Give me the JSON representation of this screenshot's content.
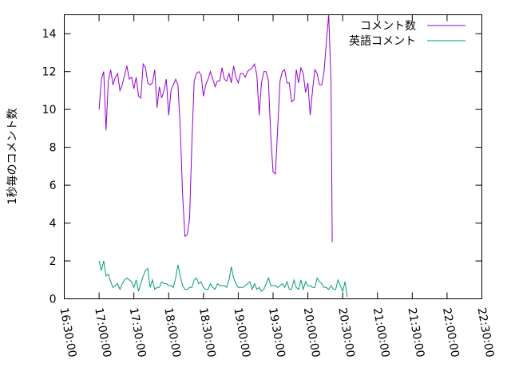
{
  "chart_data": {
    "type": "line",
    "title": "",
    "xlabel": "",
    "ylabel": "1秒毎のコメント数",
    "xlim": [
      "16:30:00",
      "22:30:00"
    ],
    "ylim": [
      0,
      15
    ],
    "x_ticks": [
      "16:30:00",
      "17:00:00",
      "17:30:00",
      "18:00:00",
      "18:30:00",
      "19:00:00",
      "19:30:00",
      "20:00:00",
      "20:30:00",
      "21:00:00",
      "21:30:00",
      "22:00:00",
      "22:30:00"
    ],
    "y_ticks": [
      "0",
      "2",
      "4",
      "6",
      "8",
      "10",
      "12",
      "14"
    ],
    "grid": false,
    "legend_position": "top-right",
    "series": [
      {
        "name": "コメント数",
        "color": "#9400d3",
        "points": [
          [
            "17:00:00",
            10.0
          ],
          [
            "17:02:00",
            11.6
          ],
          [
            "17:04:00",
            12.0
          ],
          [
            "17:06:00",
            8.9
          ],
          [
            "17:08:00",
            11.5
          ],
          [
            "17:10:00",
            12.1
          ],
          [
            "17:12:00",
            11.3
          ],
          [
            "17:14:00",
            11.7
          ],
          [
            "17:16:00",
            11.9
          ],
          [
            "17:18:00",
            11.0
          ],
          [
            "17:20:00",
            11.3
          ],
          [
            "17:22:00",
            11.8
          ],
          [
            "17:24:00",
            12.3
          ],
          [
            "17:26:00",
            11.6
          ],
          [
            "17:28:00",
            11.7
          ],
          [
            "17:30:00",
            11.1
          ],
          [
            "17:32:00",
            11.7
          ],
          [
            "17:34:00",
            10.7
          ],
          [
            "17:36:00",
            10.6
          ],
          [
            "17:38:00",
            12.4
          ],
          [
            "17:40:00",
            12.2
          ],
          [
            "17:42:00",
            11.4
          ],
          [
            "17:44:00",
            11.3
          ],
          [
            "17:46:00",
            11.4
          ],
          [
            "17:48:00",
            12.1
          ],
          [
            "17:50:00",
            10.1
          ],
          [
            "17:52:00",
            11.2
          ],
          [
            "17:54:00",
            10.6
          ],
          [
            "17:56:00",
            11.0
          ],
          [
            "17:58:00",
            11.6
          ],
          [
            "18:00:00",
            9.7
          ],
          [
            "18:02:00",
            11.0
          ],
          [
            "18:04:00",
            11.3
          ],
          [
            "18:06:00",
            11.6
          ],
          [
            "18:08:00",
            11.3
          ],
          [
            "18:10:00",
            9.0
          ],
          [
            "18:12:00",
            5.5
          ],
          [
            "18:14:00",
            3.3
          ],
          [
            "18:16:00",
            3.4
          ],
          [
            "18:18:00",
            4.2
          ],
          [
            "18:20:00",
            8.2
          ],
          [
            "18:22:00",
            11.5
          ],
          [
            "18:24:00",
            11.9
          ],
          [
            "18:26:00",
            12.0
          ],
          [
            "18:28:00",
            11.8
          ],
          [
            "18:30:00",
            10.7
          ],
          [
            "18:32:00",
            11.3
          ],
          [
            "18:34:00",
            11.6
          ],
          [
            "18:36:00",
            12.0
          ],
          [
            "18:38:00",
            11.6
          ],
          [
            "18:40:00",
            11.2
          ],
          [
            "18:42:00",
            11.5
          ],
          [
            "18:44:00",
            11.5
          ],
          [
            "18:46:00",
            12.2
          ],
          [
            "18:48:00",
            11.6
          ],
          [
            "18:50:00",
            11.5
          ],
          [
            "18:52:00",
            11.9
          ],
          [
            "18:54:00",
            11.4
          ],
          [
            "18:56:00",
            12.3
          ],
          [
            "18:58:00",
            11.7
          ],
          [
            "19:00:00",
            11.4
          ],
          [
            "19:02:00",
            11.9
          ],
          [
            "19:04:00",
            11.9
          ],
          [
            "19:06:00",
            11.7
          ],
          [
            "19:08:00",
            12.0
          ],
          [
            "19:10:00",
            12.1
          ],
          [
            "19:12:00",
            12.2
          ],
          [
            "19:14:00",
            12.4
          ],
          [
            "19:16:00",
            11.8
          ],
          [
            "19:18:00",
            9.7
          ],
          [
            "19:20:00",
            11.4
          ],
          [
            "19:22:00",
            12.0
          ],
          [
            "19:24:00",
            12.0
          ],
          [
            "19:26:00",
            11.5
          ],
          [
            "19:28:00",
            8.6
          ],
          [
            "19:30:00",
            6.7
          ],
          [
            "19:32:00",
            6.6
          ],
          [
            "19:34:00",
            9.0
          ],
          [
            "19:36:00",
            11.5
          ],
          [
            "19:38:00",
            12.0
          ],
          [
            "19:40:00",
            12.1
          ],
          [
            "19:42:00",
            11.4
          ],
          [
            "19:44:00",
            11.4
          ],
          [
            "19:46:00",
            10.4
          ],
          [
            "19:48:00",
            10.5
          ],
          [
            "19:50:00",
            12.1
          ],
          [
            "19:52:00",
            11.4
          ],
          [
            "19:54:00",
            12.2
          ],
          [
            "19:56:00",
            11.9
          ],
          [
            "19:58:00",
            10.9
          ],
          [
            "20:00:00",
            11.4
          ],
          [
            "20:02:00",
            9.7
          ],
          [
            "20:04:00",
            11.0
          ],
          [
            "20:06:00",
            12.1
          ],
          [
            "20:08:00",
            11.9
          ],
          [
            "20:10:00",
            11.3
          ],
          [
            "20:12:00",
            11.3
          ],
          [
            "20:14:00",
            12.0
          ],
          [
            "20:16:00",
            13.6
          ],
          [
            "20:18:00",
            15.0
          ],
          [
            "20:20:00",
            11.4
          ],
          [
            "20:21:00",
            3.0
          ]
        ]
      },
      {
        "name": "英語コメント",
        "color": "#009e73",
        "points": [
          [
            "17:00:00",
            2.0
          ],
          [
            "17:02:00",
            1.5
          ],
          [
            "17:04:00",
            2.0
          ],
          [
            "17:06:00",
            1.2
          ],
          [
            "17:08:00",
            1.3
          ],
          [
            "17:10:00",
            0.9
          ],
          [
            "17:12:00",
            0.6
          ],
          [
            "17:14:00",
            0.7
          ],
          [
            "17:16:00",
            0.8
          ],
          [
            "17:18:00",
            0.5
          ],
          [
            "17:20:00",
            0.8
          ],
          [
            "17:22:00",
            1.0
          ],
          [
            "17:24:00",
            1.1
          ],
          [
            "17:26:00",
            1.0
          ],
          [
            "17:28:00",
            0.9
          ],
          [
            "17:30:00",
            0.6
          ],
          [
            "17:32:00",
            1.0
          ],
          [
            "17:34:00",
            0.4
          ],
          [
            "17:36:00",
            0.8
          ],
          [
            "17:38:00",
            1.2
          ],
          [
            "17:40:00",
            1.5
          ],
          [
            "17:42:00",
            1.6
          ],
          [
            "17:44:00",
            0.6
          ],
          [
            "17:46:00",
            1.0
          ],
          [
            "17:48:00",
            0.5
          ],
          [
            "17:50:00",
            0.6
          ],
          [
            "17:52:00",
            0.6
          ],
          [
            "17:54:00",
            0.9
          ],
          [
            "17:56:00",
            0.8
          ],
          [
            "17:58:00",
            0.8
          ],
          [
            "18:00:00",
            0.7
          ],
          [
            "18:02:00",
            0.7
          ],
          [
            "18:04:00",
            0.6
          ],
          [
            "18:06:00",
            1.1
          ],
          [
            "18:08:00",
            1.8
          ],
          [
            "18:10:00",
            1.2
          ],
          [
            "18:12:00",
            0.7
          ],
          [
            "18:14:00",
            0.5
          ],
          [
            "18:16:00",
            0.5
          ],
          [
            "18:18:00",
            0.6
          ],
          [
            "18:20:00",
            0.6
          ],
          [
            "18:22:00",
            1.0
          ],
          [
            "18:24:00",
            1.1
          ],
          [
            "18:26:00",
            0.8
          ],
          [
            "18:28:00",
            0.9
          ],
          [
            "18:30:00",
            0.6
          ],
          [
            "18:32:00",
            0.5
          ],
          [
            "18:34:00",
            0.5
          ],
          [
            "18:36:00",
            0.8
          ],
          [
            "18:38:00",
            0.6
          ],
          [
            "18:40:00",
            0.5
          ],
          [
            "18:42:00",
            0.8
          ],
          [
            "18:44:00",
            0.7
          ],
          [
            "18:46:00",
            0.7
          ],
          [
            "18:48:00",
            0.7
          ],
          [
            "18:50:00",
            0.6
          ],
          [
            "18:52:00",
            1.0
          ],
          [
            "18:54:00",
            1.7
          ],
          [
            "18:56:00",
            1.1
          ],
          [
            "18:58:00",
            0.8
          ],
          [
            "19:00:00",
            0.6
          ],
          [
            "19:02:00",
            0.6
          ],
          [
            "19:04:00",
            0.6
          ],
          [
            "19:06:00",
            0.7
          ],
          [
            "19:08:00",
            0.8
          ],
          [
            "19:10:00",
            0.9
          ],
          [
            "19:12:00",
            0.5
          ],
          [
            "19:14:00",
            0.8
          ],
          [
            "19:16:00",
            0.5
          ],
          [
            "19:18:00",
            0.6
          ],
          [
            "19:20:00",
            0.4
          ],
          [
            "19:22:00",
            0.5
          ],
          [
            "19:24:00",
            0.8
          ],
          [
            "19:26:00",
            1.1
          ],
          [
            "19:28:00",
            0.7
          ],
          [
            "19:30:00",
            0.7
          ],
          [
            "19:32:00",
            0.7
          ],
          [
            "19:34:00",
            0.6
          ],
          [
            "19:36:00",
            0.7
          ],
          [
            "19:38:00",
            0.8
          ],
          [
            "19:40:00",
            0.6
          ],
          [
            "19:42:00",
            0.9
          ],
          [
            "19:44:00",
            0.5
          ],
          [
            "19:46:00",
            0.5
          ],
          [
            "19:48:00",
            1.0
          ],
          [
            "19:50:00",
            0.6
          ],
          [
            "19:52:00",
            0.5
          ],
          [
            "19:54:00",
            1.0
          ],
          [
            "19:56:00",
            0.5
          ],
          [
            "19:58:00",
            0.9
          ],
          [
            "20:00:00",
            0.7
          ],
          [
            "20:02:00",
            0.7
          ],
          [
            "20:04:00",
            0.6
          ],
          [
            "20:06:00",
            0.6
          ],
          [
            "20:08:00",
            1.1
          ],
          [
            "20:10:00",
            0.9
          ],
          [
            "20:12:00",
            0.8
          ],
          [
            "20:14:00",
            0.6
          ],
          [
            "20:16:00",
            0.6
          ],
          [
            "20:18:00",
            0.5
          ],
          [
            "20:20:00",
            0.7
          ],
          [
            "20:22:00",
            0.5
          ],
          [
            "20:24:00",
            0.5
          ],
          [
            "20:26:00",
            1.0
          ],
          [
            "20:28:00",
            0.7
          ],
          [
            "20:30:00",
            0.4
          ],
          [
            "20:32:00",
            0.9
          ],
          [
            "20:34:00",
            0.1
          ]
        ]
      }
    ]
  }
}
